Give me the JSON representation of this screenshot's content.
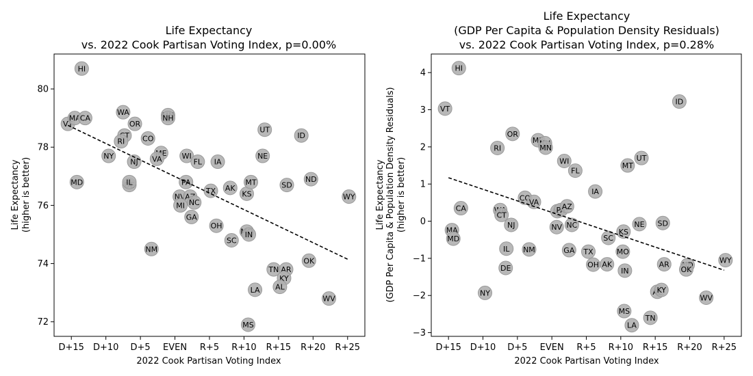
{
  "chart_data": [
    {
      "type": "scatter",
      "title": [
        "Life Expectancy",
        "vs. 2022 Cook Partisan Voting Index, p=0.00%"
      ],
      "xlabel": "2022 Cook Partisan Voting Index",
      "ylabel": [
        "Life Expectancy",
        "(higher is better)"
      ],
      "xlim": [
        -17.5,
        27.5
      ],
      "ylim": [
        71.5,
        81.2
      ],
      "xticks": [
        -15,
        -10,
        -5,
        0,
        5,
        10,
        15,
        20,
        25
      ],
      "xtick_labels": [
        "D+15",
        "D+10",
        "D+5",
        "EVEN",
        "R+5",
        "R+10",
        "R+15",
        "R+20",
        "R+25"
      ],
      "yticks": [
        72,
        74,
        76,
        78,
        80
      ],
      "ytick_labels": [
        "72",
        "74",
        "76",
        "78",
        "80"
      ],
      "marker_color": "#b0b0b0",
      "trend": {
        "x": [
          -15.5,
          25
        ],
        "y": [
          78.75,
          74.15
        ]
      },
      "points": [
        {
          "label": "HI",
          "x": -13.5,
          "y": 80.7
        },
        {
          "label": "VT",
          "x": -15.5,
          "y": 78.8
        },
        {
          "label": "MA",
          "x": -14.5,
          "y": 79.0
        },
        {
          "label": "CA",
          "x": -13.0,
          "y": 79.0
        },
        {
          "label": "MD",
          "x": -14.2,
          "y": 76.8
        },
        {
          "label": "WA",
          "x": -7.5,
          "y": 79.2
        },
        {
          "label": "OR",
          "x": -5.8,
          "y": 78.8
        },
        {
          "label": "CT",
          "x": -7.3,
          "y": 78.4
        },
        {
          "label": "RI",
          "x": -7.8,
          "y": 78.2
        },
        {
          "label": "NY",
          "x": -9.6,
          "y": 77.7
        },
        {
          "label": "CO",
          "x": -3.9,
          "y": 78.3
        },
        {
          "label": "NJ",
          "x": -5.9,
          "y": 77.5
        },
        {
          "label": "ME",
          "x": -2.0,
          "y": 77.8
        },
        {
          "label": "VA",
          "x": -2.6,
          "y": 77.6
        },
        {
          "label": "MN",
          "x": -1.0,
          "y": 79.1
        },
        {
          "label": "NH",
          "x": -1.0,
          "y": 79.0
        },
        {
          "label": "DE",
          "x": -6.6,
          "y": 76.7
        },
        {
          "label": "IL",
          "x": -6.6,
          "y": 76.8
        },
        {
          "label": "NM",
          "x": -3.4,
          "y": 74.5
        },
        {
          "label": "WI",
          "x": 1.7,
          "y": 77.7
        },
        {
          "label": "FL",
          "x": 3.3,
          "y": 77.5
        },
        {
          "label": "IA",
          "x": 6.2,
          "y": 77.5
        },
        {
          "label": "PA",
          "x": 1.6,
          "y": 76.8
        },
        {
          "label": "NV",
          "x": 0.7,
          "y": 76.3
        },
        {
          "label": "AZ",
          "x": 2.2,
          "y": 76.3
        },
        {
          "label": "MI",
          "x": 0.8,
          "y": 76.0
        },
        {
          "label": "NC",
          "x": 2.8,
          "y": 76.1
        },
        {
          "label": "GA",
          "x": 2.4,
          "y": 75.6
        },
        {
          "label": "TX",
          "x": 5.2,
          "y": 76.5
        },
        {
          "label": "AK",
          "x": 8.0,
          "y": 76.6
        },
        {
          "label": "KS",
          "x": 10.4,
          "y": 76.4
        },
        {
          "label": "MT",
          "x": 11.0,
          "y": 76.8
        },
        {
          "label": "OH",
          "x": 6.0,
          "y": 75.3
        },
        {
          "label": "SC",
          "x": 8.2,
          "y": 74.8
        },
        {
          "label": "MO",
          "x": 10.4,
          "y": 75.1
        },
        {
          "label": "IN",
          "x": 10.7,
          "y": 75.0
        },
        {
          "label": "UT",
          "x": 13.0,
          "y": 78.6
        },
        {
          "label": "NE",
          "x": 12.7,
          "y": 77.7
        },
        {
          "label": "ID",
          "x": 18.3,
          "y": 78.4
        },
        {
          "label": "SD",
          "x": 16.2,
          "y": 76.7
        },
        {
          "label": "ND",
          "x": 19.7,
          "y": 76.9
        },
        {
          "label": "WY",
          "x": 25.2,
          "y": 76.3
        },
        {
          "label": "TN",
          "x": 14.3,
          "y": 73.8
        },
        {
          "label": "AR",
          "x": 16.1,
          "y": 73.8
        },
        {
          "label": "KY",
          "x": 15.8,
          "y": 73.5
        },
        {
          "label": "AL",
          "x": 15.2,
          "y": 73.2
        },
        {
          "label": "OK",
          "x": 19.4,
          "y": 74.1
        },
        {
          "label": "LA",
          "x": 11.6,
          "y": 73.1
        },
        {
          "label": "WV",
          "x": 22.3,
          "y": 72.8
        },
        {
          "label": "MS",
          "x": 10.6,
          "y": 71.9
        }
      ]
    },
    {
      "type": "scatter",
      "title": [
        "Life Expectancy",
        "(GDP Per Capita & Population Density Residuals)",
        "vs. 2022 Cook Partisan Voting Index, p=0.28%"
      ],
      "xlabel": "2022 Cook Partisan Voting Index",
      "ylabel": [
        "Life Expectancy",
        "(GDP Per Capita & Population Density Residuals)",
        "(higher is better)"
      ],
      "xlim": [
        -17.5,
        27.5
      ],
      "ylim": [
        -3.1,
        4.5
      ],
      "xticks": [
        -15,
        -10,
        -5,
        0,
        5,
        10,
        15,
        20,
        25
      ],
      "xtick_labels": [
        "D+15",
        "D+10",
        "D+5",
        "EVEN",
        "R+5",
        "R+10",
        "R+15",
        "R+20",
        "R+25"
      ],
      "yticks": [
        -3,
        -2,
        -1,
        0,
        1,
        2,
        3,
        4
      ],
      "ytick_labels": [
        "−3",
        "−2",
        "−1",
        "0",
        "1",
        "2",
        "3",
        "4"
      ],
      "marker_color": "#b0b0b0",
      "trend": {
        "x": [
          -15,
          25
        ],
        "y": [
          1.17,
          -1.32
        ]
      },
      "points": [
        {
          "label": "HI",
          "x": -13.5,
          "y": 4.12
        },
        {
          "label": "VT",
          "x": -15.5,
          "y": 3.03
        },
        {
          "label": "OR",
          "x": -5.7,
          "y": 2.35
        },
        {
          "label": "RI",
          "x": -7.9,
          "y": 1.97
        },
        {
          "label": "ME",
          "x": -2.0,
          "y": 2.18
        },
        {
          "label": "NH",
          "x": -1.0,
          "y": 2.1
        },
        {
          "label": "MN",
          "x": -0.9,
          "y": 1.98
        },
        {
          "label": "WI",
          "x": 1.8,
          "y": 1.62
        },
        {
          "label": "FL",
          "x": 3.4,
          "y": 1.36
        },
        {
          "label": "MT",
          "x": 11.0,
          "y": 1.5
        },
        {
          "label": "UT",
          "x": 13.0,
          "y": 1.7
        },
        {
          "label": "ID",
          "x": 18.5,
          "y": 3.22
        },
        {
          "label": "CA",
          "x": -13.2,
          "y": 0.35
        },
        {
          "label": "CO",
          "x": -3.9,
          "y": 0.63
        },
        {
          "label": "VA",
          "x": -2.6,
          "y": 0.52
        },
        {
          "label": "IA",
          "x": 6.3,
          "y": 0.8
        },
        {
          "label": "WA",
          "x": -7.5,
          "y": 0.3
        },
        {
          "label": "CT",
          "x": -7.3,
          "y": 0.17
        },
        {
          "label": "MI",
          "x": 0.8,
          "y": 0.27
        },
        {
          "label": "PA",
          "x": 1.3,
          "y": 0.3
        },
        {
          "label": "AZ",
          "x": 2.2,
          "y": 0.4
        },
        {
          "label": "NJ",
          "x": -5.9,
          "y": -0.1
        },
        {
          "label": "NV",
          "x": 0.7,
          "y": -0.16
        },
        {
          "label": "NC",
          "x": 2.9,
          "y": -0.1
        },
        {
          "label": "KS",
          "x": 10.4,
          "y": -0.28
        },
        {
          "label": "NE",
          "x": 12.7,
          "y": -0.08
        },
        {
          "label": "SD",
          "x": 16.1,
          "y": -0.05
        },
        {
          "label": "MA",
          "x": -14.5,
          "y": -0.24
        },
        {
          "label": "MD",
          "x": -14.3,
          "y": -0.47
        },
        {
          "label": "SC",
          "x": 8.2,
          "y": -0.45
        },
        {
          "label": "IL",
          "x": -6.6,
          "y": -0.74
        },
        {
          "label": "NM",
          "x": -3.3,
          "y": -0.76
        },
        {
          "label": "GA",
          "x": 2.5,
          "y": -0.78
        },
        {
          "label": "TX",
          "x": 5.3,
          "y": -0.82
        },
        {
          "label": "MO",
          "x": 10.3,
          "y": -0.82
        },
        {
          "label": "OH",
          "x": 6.0,
          "y": -1.17
        },
        {
          "label": "AK",
          "x": 8.0,
          "y": -1.16
        },
        {
          "label": "DE",
          "x": -6.7,
          "y": -1.26
        },
        {
          "label": "IN",
          "x": 10.6,
          "y": -1.33
        },
        {
          "label": "AR",
          "x": 16.3,
          "y": -1.16
        },
        {
          "label": "ND",
          "x": 19.7,
          "y": -1.18
        },
        {
          "label": "OK",
          "x": 19.5,
          "y": -1.3
        },
        {
          "label": "WY",
          "x": 25.2,
          "y": -1.05
        },
        {
          "label": "NY",
          "x": -9.7,
          "y": -1.93
        },
        {
          "label": "AL",
          "x": 15.3,
          "y": -1.9
        },
        {
          "label": "KY",
          "x": 15.9,
          "y": -1.85
        },
        {
          "label": "WV",
          "x": 22.4,
          "y": -2.06
        },
        {
          "label": "MS",
          "x": 10.5,
          "y": -2.42
        },
        {
          "label": "TN",
          "x": 14.3,
          "y": -2.6
        },
        {
          "label": "LA",
          "x": 11.6,
          "y": -2.8
        }
      ]
    }
  ]
}
